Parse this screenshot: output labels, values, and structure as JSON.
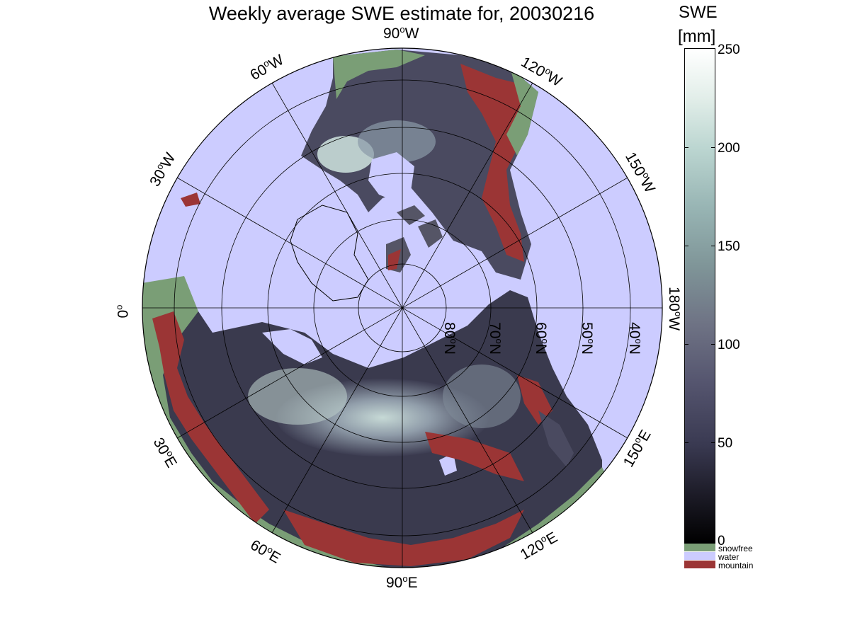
{
  "title": "Weekly average SWE estimate for, 20030216",
  "colorbar": {
    "title_line1": "SWE",
    "title_line2": "[mm]",
    "ticks": [
      "250",
      "200",
      "150",
      "100",
      "50",
      "0"
    ],
    "range": [
      0,
      250
    ]
  },
  "legend": [
    {
      "label": "snowfree",
      "color": "#7a9e76"
    },
    {
      "label": "water",
      "color": "#ccccff"
    },
    {
      "label": "mountain",
      "color": "#9b3535"
    }
  ],
  "map": {
    "projection": "north polar stereographic",
    "longitude_labels": {
      "lon_90w": "90",
      "lon_60w": "60",
      "lon_30w": "30",
      "lon_0": "0",
      "lon_30e": "30",
      "lon_60e": "60",
      "lon_90e": "90",
      "lon_120e": "120",
      "lon_150e": "150",
      "lon_180w": "180",
      "lon_150w": "150",
      "lon_120w": "120"
    },
    "longitude_suffix": {
      "west": "W",
      "east": "E",
      "none": ""
    },
    "degree_mark": "o",
    "latitude_labels": [
      "80",
      "70",
      "60",
      "50",
      "40"
    ],
    "latitude_suffix": "N",
    "ocean_color": "#ccccff"
  }
}
